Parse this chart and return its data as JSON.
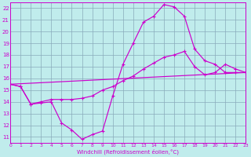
{
  "xlabel": "Windchill (Refroidissement éolien,°C)",
  "xlim": [
    0,
    23
  ],
  "ylim": [
    10.5,
    22.5
  ],
  "xticks": [
    0,
    1,
    2,
    3,
    4,
    5,
    6,
    7,
    8,
    9,
    10,
    11,
    12,
    13,
    14,
    15,
    16,
    17,
    18,
    19,
    20,
    21,
    22,
    23
  ],
  "yticks": [
    11,
    12,
    13,
    14,
    15,
    16,
    17,
    18,
    19,
    20,
    21,
    22
  ],
  "bg_color": "#c0ecec",
  "line_color": "#cc00cc",
  "grid_color": "#88aabb",
  "line1_x": [
    0,
    1,
    2,
    3,
    4,
    5,
    6,
    7,
    8,
    9,
    10,
    11,
    12,
    13,
    14,
    15,
    16,
    17,
    18,
    19,
    20,
    21,
    22,
    23
  ],
  "line1_y": [
    15.5,
    15.3,
    13.8,
    13.9,
    14.0,
    12.2,
    11.6,
    10.8,
    11.2,
    11.5,
    14.5,
    17.2,
    19.0,
    20.8,
    21.3,
    22.3,
    22.1,
    21.3,
    18.5,
    17.5,
    17.2,
    16.5,
    16.5,
    16.5
  ],
  "line2_x": [
    0,
    1,
    2,
    3,
    4,
    5,
    6,
    7,
    8,
    9,
    10,
    11,
    12,
    13,
    14,
    15,
    16,
    17,
    18,
    19,
    20,
    21,
    22,
    23
  ],
  "line2_y": [
    15.5,
    15.3,
    13.8,
    14.0,
    14.2,
    14.2,
    14.2,
    14.3,
    14.5,
    15.0,
    15.3,
    15.8,
    16.2,
    16.8,
    17.3,
    17.8,
    18.0,
    18.3,
    17.0,
    16.3,
    16.5,
    17.2,
    16.8,
    16.5
  ],
  "line3_x": [
    0,
    23
  ],
  "line3_y": [
    15.5,
    16.5
  ]
}
